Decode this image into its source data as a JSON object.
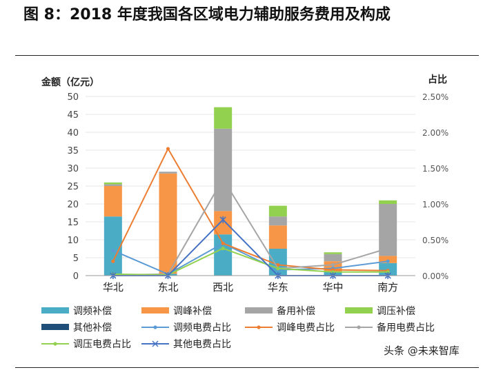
{
  "figure_title": "图 8：2018 年度我国各区域电力辅助服务费用及构成",
  "watermark": "头条 @未来智库",
  "chart_data": {
    "type": "bar",
    "stacked": true,
    "categories": [
      "华北",
      "东北",
      "西北",
      "华东",
      "华中",
      "南方"
    ],
    "ylabel": "金额（亿元）",
    "ylim": [
      0,
      50
    ],
    "yticks": [
      "0",
      "5",
      "10",
      "15",
      "20",
      "25",
      "30",
      "35",
      "40",
      "45",
      "50"
    ],
    "y2label": "占比",
    "y2lim": [
      0,
      2.5
    ],
    "y2ticks": [
      "0.00%",
      "0.50%",
      "1.00%",
      "1.50%",
      "2.00%",
      "2.50%"
    ],
    "series": [
      {
        "name": "调频补偿",
        "kind": "bar",
        "color": "#4bacc6",
        "values": [
          16.5,
          0.5,
          11.5,
          7.5,
          1.0,
          3.5
        ]
      },
      {
        "name": "调峰补偿",
        "kind": "bar",
        "color": "#f79646",
        "values": [
          8.5,
          28.0,
          6.5,
          6.5,
          3.0,
          2.0
        ]
      },
      {
        "name": "备用补偿",
        "kind": "bar",
        "color": "#a5a5a5",
        "values": [
          0.5,
          0.5,
          23.0,
          2.5,
          2.0,
          14.5
        ]
      },
      {
        "name": "调压补偿",
        "kind": "bar",
        "color": "#92d050",
        "values": [
          0.5,
          0.0,
          6.0,
          3.0,
          0.5,
          1.0
        ]
      },
      {
        "name": "其他补偿",
        "kind": "bar",
        "color": "#1f4e79",
        "values": [
          0.0,
          0.0,
          0.0,
          0.0,
          0.0,
          0.0
        ]
      },
      {
        "name": "调频电费占比",
        "kind": "line",
        "color": "#5b9bd5",
        "values": [
          0.35,
          0.02,
          0.45,
          0.08,
          0.1,
          0.2
        ]
      },
      {
        "name": "调峰电费占比",
        "kind": "line",
        "color": "#ed7d31",
        "values": [
          0.2,
          1.77,
          0.45,
          0.15,
          0.08,
          0.07
        ]
      },
      {
        "name": "备用电费占比",
        "kind": "line",
        "color": "#a5a5a5",
        "values": [
          0.01,
          0.02,
          1.35,
          0.1,
          0.15,
          0.38
        ]
      },
      {
        "name": "调压电费占比",
        "kind": "line",
        "color": "#92d050",
        "values": [
          0.02,
          0.01,
          0.38,
          0.1,
          0.05,
          0.05
        ]
      },
      {
        "name": "其他电费占比",
        "kind": "line",
        "color": "#4472c4",
        "marker": "star",
        "values": [
          0.0,
          0.0,
          0.78,
          0.0,
          0.0,
          0.0
        ]
      }
    ]
  }
}
